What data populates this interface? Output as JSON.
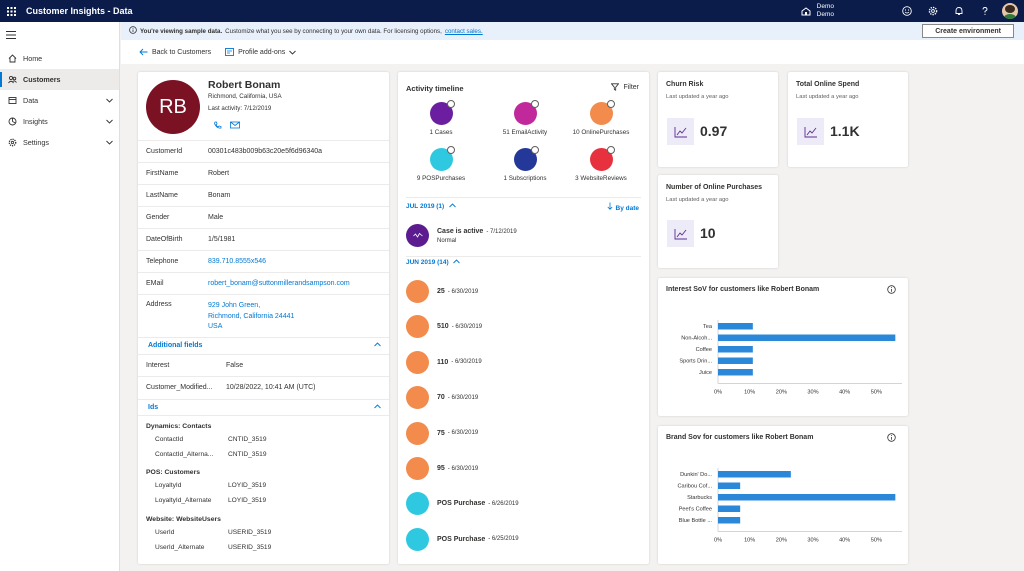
{
  "app": {
    "title": "Customer Insights - Data",
    "env_label": "Demo",
    "env_name": "Demo"
  },
  "nav": {
    "items": [
      {
        "label": "Home",
        "icon": "home-icon"
      },
      {
        "label": "Customers",
        "icon": "customers-icon",
        "active": true
      },
      {
        "label": "Data",
        "icon": "data-icon",
        "chevron": true
      },
      {
        "label": "Insights",
        "icon": "insights-icon",
        "chevron": true
      },
      {
        "label": "Settings",
        "icon": "gear-icon",
        "chevron": true
      }
    ]
  },
  "banner": {
    "bold": "You're viewing sample data.",
    "text": "Customize what you see by connecting to your own data. For licensing options,",
    "link": "contact sales.",
    "create_label": "Create environment"
  },
  "commands": {
    "back": "Back to Customers",
    "addons": "Profile add-ons"
  },
  "profile": {
    "initials": "RB",
    "name": "Robert Bonam",
    "location": "Richmond, California, USA",
    "last_activity": "Last activity: 7/12/2019",
    "fields": [
      {
        "label": "CustomerId",
        "value": "00301c483b009b63c20e5f6d96340a",
        "link": false
      },
      {
        "label": "FirstName",
        "value": "Robert",
        "link": false
      },
      {
        "label": "LastName",
        "value": "Bonam",
        "link": false
      },
      {
        "label": "Gender",
        "value": "Male",
        "link": false
      },
      {
        "label": "DateOfBirth",
        "value": "1/5/1981",
        "link": false
      },
      {
        "label": "Telephone",
        "value": "839.710.8555x546",
        "link": true
      },
      {
        "label": "EMail",
        "value": "robert_bonam@suttonmillerandsampson.com",
        "link": true
      }
    ],
    "address_label": "Address",
    "address": [
      "929 John Green,",
      "Richmond, California 24441",
      "USA"
    ],
    "additional_title": "Additional fields",
    "additional": [
      {
        "label": "Interest",
        "value": "False"
      },
      {
        "label": "Customer_Modified...",
        "value": "10/28/2022, 10:41 AM (UTC)"
      }
    ],
    "ids_title": "Ids",
    "id_groups": [
      {
        "title": "Dynamics: Contacts",
        "rows": [
          {
            "k": "ContactId",
            "v": "CNTID_3519"
          },
          {
            "k": "ContactId_Alterna...",
            "v": "CNTID_3519"
          }
        ]
      },
      {
        "title": "POS: Customers",
        "rows": [
          {
            "k": "LoyaltyId",
            "v": "LOYID_3519"
          },
          {
            "k": "LoyaltyId_Alternate",
            "v": "LOYID_3519"
          }
        ]
      },
      {
        "title": "Website: WebsiteUsers",
        "rows": [
          {
            "k": "UserId",
            "v": "USERID_3519"
          },
          {
            "k": "UserId_Alternate",
            "v": "USERID_3519"
          }
        ]
      }
    ]
  },
  "timeline": {
    "title": "Activity timeline",
    "filter": "Filter",
    "types": [
      {
        "label": "1 Cases",
        "color": "#6b1fa0"
      },
      {
        "label": "51 EmailActivity",
        "color": "#c0289b"
      },
      {
        "label": "10 OnlinePurchases",
        "color": "#f28b4c"
      },
      {
        "label": "9 POSPurchases",
        "color": "#2ec9e0"
      },
      {
        "label": "1 Subscriptions",
        "color": "#24389a"
      },
      {
        "label": "3 WebsiteReviews",
        "color": "#e8313e"
      }
    ],
    "sort": "By date",
    "jul_label": "JUL 2019 (1)",
    "jun_label": "JUN 2019 (14)",
    "case": {
      "title": "Case is active",
      "date": "- 7/12/2019",
      "sub": "Normal",
      "color": "#5c1b8f"
    },
    "entries": [
      {
        "title": "25",
        "date": "- 6/30/2019",
        "color": "#f28b4c"
      },
      {
        "title": "510",
        "date": "- 6/30/2019",
        "color": "#f28b4c"
      },
      {
        "title": "110",
        "date": "- 6/30/2019",
        "color": "#f28b4c"
      },
      {
        "title": "70",
        "date": "- 6/30/2019",
        "color": "#f28b4c"
      },
      {
        "title": "75",
        "date": "- 6/30/2019",
        "color": "#f28b4c"
      },
      {
        "title": "95",
        "date": "- 6/30/2019",
        "color": "#f28b4c"
      },
      {
        "title": "POS Purchase",
        "date": "- 6/26/2019",
        "color": "#2ec9e0"
      },
      {
        "title": "POS Purchase",
        "date": "- 6/25/2019",
        "color": "#2ec9e0"
      }
    ]
  },
  "kpis": [
    {
      "title": "Churn Risk",
      "updated": "Last updated a year ago",
      "value": "0.97"
    },
    {
      "title": "Total Online Spend",
      "updated": "Last updated a year ago",
      "value": "1.1K"
    },
    {
      "title": "Number of Online Purchases",
      "updated": "Last updated a year ago",
      "value": "10"
    }
  ],
  "chart_data": [
    {
      "type": "bar",
      "orientation": "horizontal",
      "title": "Interest SoV for customers like Robert Bonam",
      "categories": [
        "Tea",
        "Non-Alcoh...",
        "Coffee",
        "Sports Drin...",
        "Juice"
      ],
      "values": [
        11,
        56,
        11,
        11,
        11
      ],
      "xlim": [
        0,
        60
      ],
      "ticks": [
        "0%",
        "10%",
        "20%",
        "30%",
        "40%",
        "50%"
      ],
      "tick_values": [
        0,
        10,
        20,
        30,
        40,
        50
      ],
      "bar_color": "#2b88d8",
      "grid": false
    },
    {
      "type": "bar",
      "orientation": "horizontal",
      "title": "Brand Sov for customers like Robert Bonam",
      "categories": [
        "Dunkin' Do...",
        "Caribou Cof...",
        "Starbucks",
        "Peet's Coffee",
        "Blue Bottle ..."
      ],
      "values": [
        23,
        7,
        56,
        7,
        7
      ],
      "xlim": [
        0,
        60
      ],
      "ticks": [
        "0%",
        "10%",
        "20%",
        "30%",
        "40%",
        "50%"
      ],
      "tick_values": [
        0,
        10,
        20,
        30,
        40,
        50
      ],
      "bar_color": "#2b88d8",
      "grid": false
    }
  ]
}
